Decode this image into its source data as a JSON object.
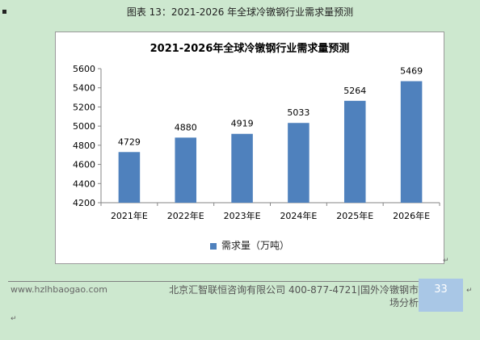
{
  "caption": "图表  13：2021-2026 年全球冷镦钢行业需求量预测",
  "chart_data": {
    "type": "bar",
    "title": "2021-2026年全球冷镦钢行业需求量预测",
    "categories": [
      "2021年E",
      "2022年E",
      "2023年E",
      "2024年E",
      "2025年E",
      "2026年E"
    ],
    "series": [
      {
        "name": "需求量（万吨）",
        "values": [
          4729,
          4880,
          4919,
          5033,
          5264,
          5469
        ]
      }
    ],
    "ylim": [
      4200,
      5600
    ],
    "yticks": [
      4200,
      4400,
      4600,
      4800,
      5000,
      5200,
      5400,
      5600
    ],
    "xlabel": "",
    "ylabel": "",
    "grid": false,
    "legend_position": "bottom",
    "bar_color": "#4f81bd"
  },
  "footer": {
    "website": "www.hzlhbaogao.com",
    "company": "北京汇智联恒咨询有限公司  400-877-4721|国外冷镦钢市场分析",
    "page_number": "33"
  }
}
